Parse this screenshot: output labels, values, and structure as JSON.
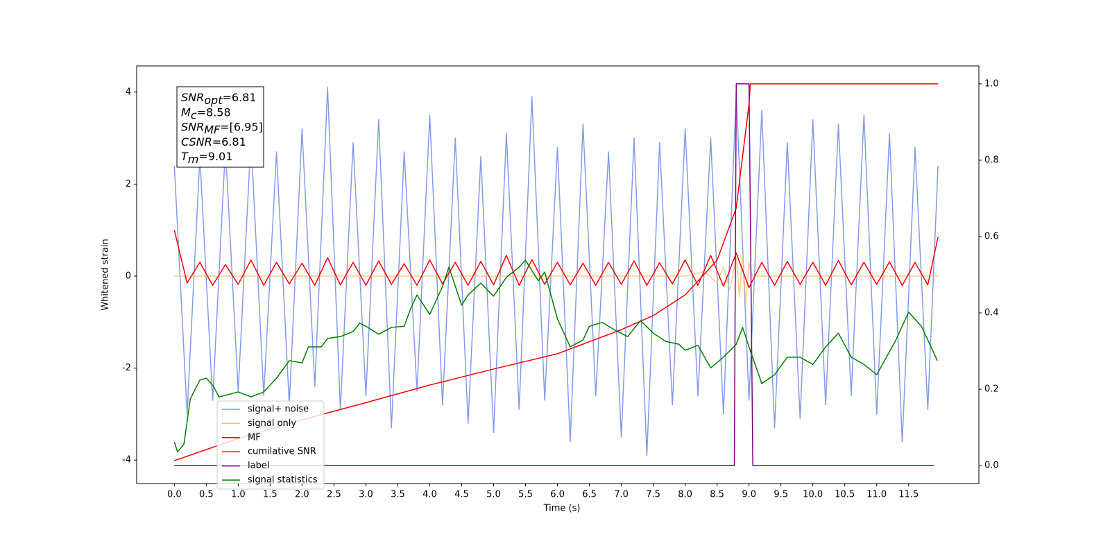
{
  "chart_data": {
    "type": "line",
    "xlabel": "Time (s)",
    "ylabel": "Whitened strain",
    "xlim": [
      -0.59,
      12.6
    ],
    "ylim": [
      -4.51,
      4.57
    ],
    "y2lim": [
      -0.047,
      1.047
    ],
    "xticks": [
      {
        "value": 0,
        "label": "0.0"
      },
      0.5,
      {
        "value": 1,
        "label": "1.0"
      },
      1.5,
      {
        "value": 2,
        "label": "2.0"
      },
      2.5,
      {
        "value": 3,
        "label": "3.0"
      },
      3.5,
      {
        "value": 4,
        "label": "4.0"
      },
      4.5,
      {
        "value": 5,
        "label": "5.0"
      },
      5.5,
      {
        "value": 6,
        "label": "6.0"
      },
      6.5,
      {
        "value": 7,
        "label": "7.0"
      },
      7.5,
      {
        "value": 8,
        "label": "8.0"
      },
      8.5,
      {
        "value": 9,
        "label": "9.0"
      },
      9.5,
      {
        "value": 10,
        "label": "10.0"
      },
      10.5,
      {
        "value": 11,
        "label": "11.0"
      },
      11.5
    ],
    "yticks": [
      -4,
      -2,
      0,
      2,
      4
    ],
    "y2ticks": [
      {
        "value": 0,
        "label": "0.0"
      },
      0.2,
      0.4,
      0.6,
      0.8,
      {
        "value": 1,
        "label": "1.0"
      }
    ],
    "legend": "lower left",
    "annotation": [
      {
        "sym": "SNR",
        "sub": "opt",
        "rest": "=6.81"
      },
      {
        "sym": "M",
        "sub": "c",
        "rest": "=8.58"
      },
      {
        "sym": "SNR",
        "sub": "MF",
        "rest": "=[6.95]"
      },
      {
        "sym": "CSNR",
        "sub": "",
        "rest": "=6.81"
      },
      {
        "sym": "T",
        "sub": "m",
        "rest": "=9.01"
      }
    ],
    "series": [
      {
        "name": "signal+ noise",
        "color": "#7b96e8",
        "x": [
          0,
          0.2,
          0.4,
          0.6,
          0.8,
          1.0,
          1.2,
          1.4,
          1.6,
          1.8,
          2.0,
          2.2,
          2.4,
          2.6,
          2.8,
          3.0,
          3.2,
          3.4,
          3.6,
          3.8,
          4.0,
          4.2,
          4.4,
          4.6,
          4.8,
          5.0,
          5.2,
          5.4,
          5.6,
          5.8,
          6.0,
          6.2,
          6.4,
          6.6,
          6.8,
          7.0,
          7.2,
          7.4,
          7.6,
          7.8,
          8.0,
          8.2,
          8.4,
          8.6,
          8.8,
          9.0,
          9.2,
          9.4,
          9.6,
          9.8,
          10.0,
          10.2,
          10.4,
          10.6,
          10.8,
          11.0,
          11.2,
          11.4,
          11.6,
          11.8,
          11.96
        ],
        "values": [
          2.4,
          -3.0,
          2.6,
          -2.7,
          2.8,
          -2.5,
          3.0,
          -2.6,
          2.7,
          -2.8,
          3.2,
          -2.4,
          4.1,
          -2.9,
          2.9,
          -2.6,
          3.4,
          -3.3,
          2.7,
          -2.5,
          3.5,
          -2.8,
          3.0,
          -3.2,
          2.6,
          -3.4,
          3.1,
          -2.9,
          3.9,
          -2.7,
          2.8,
          -3.6,
          3.3,
          -2.6,
          2.7,
          -3.5,
          3.0,
          -3.9,
          2.9,
          -2.8,
          3.2,
          -2.6,
          3.0,
          -3.0,
          4.0,
          -2.7,
          3.6,
          -3.3,
          2.9,
          -3.1,
          3.4,
          -2.8,
          3.3,
          -2.6,
          3.5,
          -3.0,
          3.1,
          -3.6,
          2.8,
          -2.9,
          2.4
        ]
      },
      {
        "name": "signal only",
        "color": "#f5c26b",
        "x": [
          0,
          8.0,
          8.3,
          8.5,
          8.6,
          8.7,
          8.8,
          8.85,
          8.9,
          8.95,
          9.0,
          9.05,
          11.96
        ],
        "values": [
          0,
          0,
          0.1,
          -0.15,
          0.2,
          -0.3,
          0.4,
          -0.45,
          0.5,
          -0.6,
          0.3,
          0,
          0
        ]
      },
      {
        "name": "MF",
        "color": "#ff0000",
        "x": [
          0,
          0.2,
          0.4,
          0.6,
          0.8,
          1.0,
          1.2,
          1.4,
          1.6,
          1.8,
          2.0,
          2.2,
          2.4,
          2.6,
          2.8,
          3.0,
          3.2,
          3.4,
          3.6,
          3.8,
          4.0,
          4.2,
          4.4,
          4.6,
          4.8,
          5.0,
          5.2,
          5.4,
          5.6,
          5.8,
          6.0,
          6.2,
          6.4,
          6.6,
          6.8,
          7.0,
          7.2,
          7.4,
          7.6,
          7.8,
          8.0,
          8.2,
          8.4,
          8.6,
          8.8,
          9.0,
          9.2,
          9.4,
          9.6,
          9.8,
          10.0,
          10.2,
          10.4,
          10.6,
          10.8,
          11.0,
          11.2,
          11.4,
          11.6,
          11.8,
          11.96
        ],
        "values": [
          1.0,
          -0.15,
          0.3,
          -0.2,
          0.25,
          -0.18,
          0.35,
          -0.2,
          0.3,
          -0.17,
          0.28,
          -0.2,
          0.4,
          -0.19,
          0.3,
          -0.2,
          0.33,
          -0.18,
          0.27,
          -0.2,
          0.35,
          -0.17,
          0.3,
          -0.2,
          0.32,
          -0.19,
          0.45,
          -0.2,
          0.36,
          -0.18,
          0.3,
          -0.19,
          0.28,
          -0.2,
          0.3,
          -0.18,
          0.33,
          -0.2,
          0.29,
          -0.17,
          0.35,
          -0.2,
          0.45,
          -0.22,
          0.5,
          -0.25,
          0.3,
          -0.2,
          0.32,
          -0.18,
          0.3,
          -0.2,
          0.34,
          -0.19,
          0.3,
          -0.18,
          0.31,
          -0.2,
          0.3,
          -0.19,
          0.85
        ]
      },
      {
        "name": "cumilative SNR",
        "color": "#ff0000",
        "axis": "y2",
        "x": [
          0,
          1.0,
          2.0,
          3.0,
          4.0,
          5.0,
          6.0,
          7.0,
          7.5,
          8.0,
          8.5,
          8.8,
          9.0,
          9.02,
          11.96
        ],
        "values": [
          0.013,
          0.071,
          0.12,
          0.165,
          0.211,
          0.253,
          0.293,
          0.356,
          0.393,
          0.447,
          0.538,
          0.675,
          0.947,
          1.0,
          1.0
        ]
      },
      {
        "name": "label",
        "color": "#800080",
        "axis": "y2",
        "x": [
          0,
          8.77,
          8.8,
          9.0,
          9.06,
          11.9
        ],
        "values": [
          0,
          0,
          1,
          1,
          0,
          0
        ]
      },
      {
        "name": "signal statistics",
        "color": "#008000",
        "axis": "y2",
        "x": [
          0,
          0.05,
          0.15,
          0.25,
          0.4,
          0.5,
          0.6,
          0.7,
          0.8,
          1.0,
          1.2,
          1.4,
          1.6,
          1.8,
          2.0,
          2.1,
          2.3,
          2.4,
          2.6,
          2.8,
          2.9,
          3.0,
          3.2,
          3.4,
          3.6,
          3.7,
          3.8,
          4.0,
          4.2,
          4.3,
          4.5,
          4.6,
          4.8,
          5.0,
          5.2,
          5.4,
          5.5,
          5.7,
          5.8,
          6.0,
          6.2,
          6.4,
          6.5,
          6.7,
          6.9,
          7.1,
          7.3,
          7.5,
          7.7,
          7.9,
          8.0,
          8.2,
          8.4,
          8.6,
          8.8,
          8.9,
          9.0,
          9.2,
          9.4,
          9.6,
          9.8,
          10.0,
          10.2,
          10.4,
          10.6,
          10.8,
          11.0,
          11.3,
          11.5,
          11.7,
          11.95
        ],
        "values": [
          0.062,
          0.036,
          0.056,
          0.175,
          0.224,
          0.229,
          0.211,
          0.18,
          0.184,
          0.193,
          0.18,
          0.193,
          0.229,
          0.275,
          0.269,
          0.311,
          0.311,
          0.333,
          0.338,
          0.351,
          0.373,
          0.365,
          0.344,
          0.362,
          0.365,
          0.411,
          0.447,
          0.396,
          0.469,
          0.52,
          0.42,
          0.447,
          0.478,
          0.444,
          0.493,
          0.52,
          0.538,
          0.484,
          0.507,
          0.384,
          0.311,
          0.329,
          0.365,
          0.375,
          0.355,
          0.338,
          0.38,
          0.347,
          0.325,
          0.318,
          0.302,
          0.315,
          0.256,
          0.284,
          0.318,
          0.362,
          0.311,
          0.215,
          0.238,
          0.284,
          0.284,
          0.265,
          0.311,
          0.347,
          0.284,
          0.265,
          0.238,
          0.329,
          0.402,
          0.365,
          0.275
        ]
      }
    ]
  }
}
